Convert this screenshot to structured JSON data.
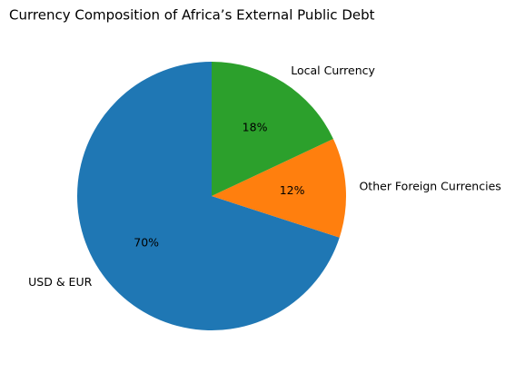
{
  "chart_data": {
    "type": "pie",
    "title": "Currency Composition of Africa’s External Public Debt",
    "categories": [
      "USD & EUR",
      "Other Foreign Currencies",
      "Local Currency"
    ],
    "values": [
      70,
      12,
      18
    ],
    "value_labels": [
      "70%",
      "12%",
      "18%"
    ],
    "colors": [
      "#1f77b4",
      "#ff7f0e",
      "#2ca02c"
    ]
  }
}
